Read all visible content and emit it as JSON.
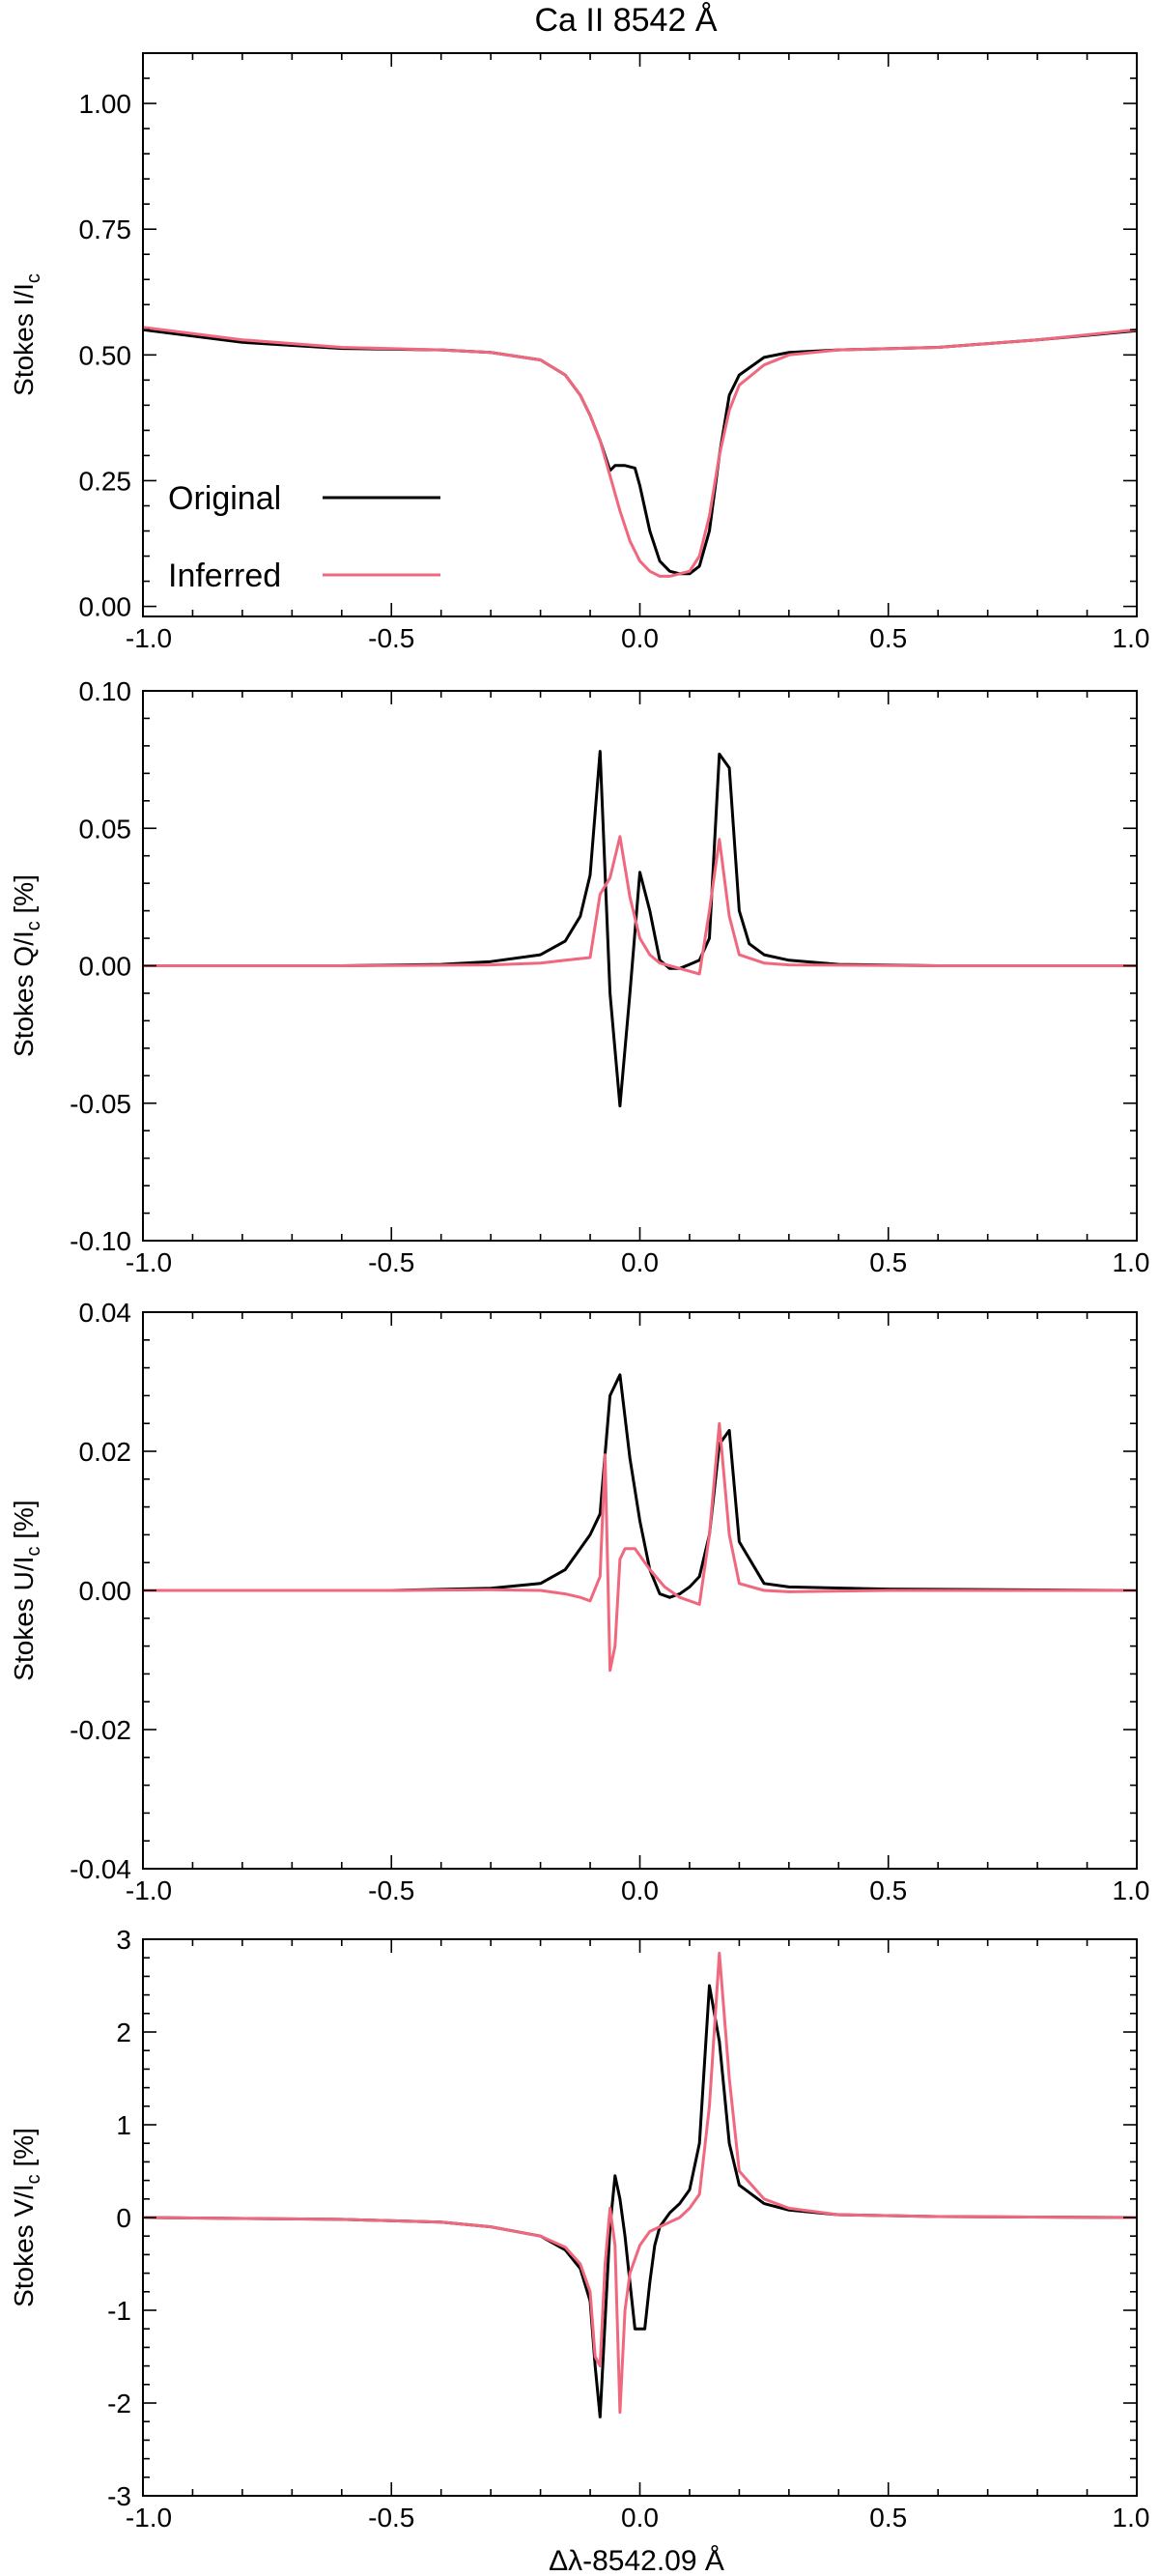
{
  "figure_title": "Ca II 8542 Å",
  "x_axis_label": "Δλ-8542.09 Å",
  "colors": {
    "original": "#000000",
    "inferred": "#f0687e",
    "axes": "#000000",
    "background": "#ffffff"
  },
  "chart_data": [
    {
      "type": "line",
      "title": "Ca II 8542 Å",
      "ylabel": "Stokes I/I",
      "ylabel_subscript": "c",
      "ylabel_suffix": "",
      "xlabel": "",
      "xlim": [
        -1.0,
        1.0
      ],
      "ylim": [
        -0.02,
        1.1
      ],
      "x_ticks": [
        -1.0,
        -0.5,
        0.0,
        0.5,
        1.0
      ],
      "x_tick_labels": [
        "-1.0",
        "-0.5",
        "0.0",
        "0.5",
        "1.0"
      ],
      "y_ticks": [
        0.0,
        0.25,
        0.5,
        0.75,
        1.0
      ],
      "y_tick_labels": [
        "0.00",
        "0.25",
        "0.50",
        "0.75",
        "1.00"
      ],
      "grid": false,
      "legend": {
        "placement": "bottom-left",
        "entries": [
          "Original",
          "Inferred"
        ]
      },
      "series": [
        {
          "name": "Original",
          "color": "#000000",
          "x": [
            -1.0,
            -0.8,
            -0.6,
            -0.4,
            -0.3,
            -0.2,
            -0.15,
            -0.12,
            -0.1,
            -0.08,
            -0.06,
            -0.05,
            -0.04,
            -0.03,
            -0.01,
            0.0,
            0.02,
            0.04,
            0.06,
            0.08,
            0.1,
            0.12,
            0.14,
            0.16,
            0.18,
            0.2,
            0.25,
            0.3,
            0.4,
            0.6,
            0.8,
            1.0
          ],
          "y": [
            0.55,
            0.525,
            0.513,
            0.51,
            0.505,
            0.49,
            0.46,
            0.42,
            0.38,
            0.33,
            0.27,
            0.28,
            0.28,
            0.28,
            0.275,
            0.24,
            0.15,
            0.09,
            0.07,
            0.065,
            0.065,
            0.08,
            0.15,
            0.3,
            0.42,
            0.46,
            0.495,
            0.505,
            0.51,
            0.515,
            0.53,
            0.548
          ]
        },
        {
          "name": "Inferred",
          "color": "#f0687e",
          "x": [
            -1.0,
            -0.8,
            -0.6,
            -0.4,
            -0.3,
            -0.2,
            -0.15,
            -0.12,
            -0.1,
            -0.08,
            -0.06,
            -0.04,
            -0.02,
            0.0,
            0.02,
            0.04,
            0.06,
            0.08,
            0.1,
            0.12,
            0.14,
            0.16,
            0.18,
            0.2,
            0.25,
            0.3,
            0.4,
            0.6,
            0.8,
            1.0
          ],
          "y": [
            0.555,
            0.53,
            0.515,
            0.51,
            0.505,
            0.49,
            0.46,
            0.42,
            0.38,
            0.33,
            0.26,
            0.19,
            0.13,
            0.09,
            0.07,
            0.06,
            0.06,
            0.065,
            0.07,
            0.1,
            0.18,
            0.3,
            0.39,
            0.44,
            0.48,
            0.5,
            0.51,
            0.515,
            0.53,
            0.55
          ]
        }
      ]
    },
    {
      "type": "line",
      "ylabel": "Stokes Q/I",
      "ylabel_subscript": "c",
      "ylabel_suffix": " [%]",
      "xlabel": "",
      "xlim": [
        -1.0,
        1.0
      ],
      "ylim": [
        -0.1,
        0.1
      ],
      "x_ticks": [
        -1.0,
        -0.5,
        0.0,
        0.5,
        1.0
      ],
      "x_tick_labels": [
        "-1.0",
        "-0.5",
        "0.0",
        "0.5",
        "1.0"
      ],
      "y_ticks": [
        -0.1,
        -0.05,
        0.0,
        0.05,
        0.1
      ],
      "y_tick_labels": [
        "-0.10",
        "-0.05",
        "0.00",
        "0.05",
        "0.10"
      ],
      "grid": false,
      "series": [
        {
          "name": "Original",
          "color": "#000000",
          "x": [
            -1.0,
            -0.6,
            -0.4,
            -0.3,
            -0.2,
            -0.15,
            -0.12,
            -0.1,
            -0.08,
            -0.06,
            -0.04,
            -0.02,
            0.0,
            0.02,
            0.04,
            0.06,
            0.08,
            0.1,
            0.12,
            0.14,
            0.16,
            0.18,
            0.2,
            0.22,
            0.25,
            0.3,
            0.4,
            0.6,
            1.0
          ],
          "y": [
            0.0,
            0.0,
            0.0005,
            0.0015,
            0.004,
            0.009,
            0.018,
            0.033,
            0.078,
            -0.01,
            -0.051,
            -0.01,
            0.034,
            0.02,
            0.002,
            -0.001,
            -0.001,
            0.0005,
            0.002,
            0.01,
            0.077,
            0.072,
            0.02,
            0.008,
            0.004,
            0.002,
            0.0005,
            0.0,
            0.0
          ]
        },
        {
          "name": "Inferred",
          "color": "#f0687e",
          "x": [
            -1.0,
            -0.6,
            -0.3,
            -0.2,
            -0.15,
            -0.1,
            -0.08,
            -0.06,
            -0.04,
            -0.02,
            0.0,
            0.02,
            0.04,
            0.06,
            0.08,
            0.1,
            0.12,
            0.14,
            0.16,
            0.18,
            0.2,
            0.25,
            0.3,
            0.6,
            1.0
          ],
          "y": [
            0.0,
            0.0,
            0.0003,
            0.001,
            0.002,
            0.003,
            0.026,
            0.032,
            0.047,
            0.025,
            0.01,
            0.004,
            0.001,
            0.0,
            -0.001,
            -0.002,
            -0.003,
            0.02,
            0.046,
            0.018,
            0.004,
            0.001,
            0.0003,
            0.0,
            0.0
          ]
        }
      ]
    },
    {
      "type": "line",
      "ylabel": "Stokes U/I",
      "ylabel_subscript": "c",
      "ylabel_suffix": " [%]",
      "xlabel": "",
      "xlim": [
        -1.0,
        1.0
      ],
      "ylim": [
        -0.04,
        0.04
      ],
      "x_ticks": [
        -1.0,
        -0.5,
        0.0,
        0.5,
        1.0
      ],
      "x_tick_labels": [
        "-1.0",
        "-0.5",
        "0.0",
        "0.5",
        "1.0"
      ],
      "y_ticks": [
        -0.04,
        -0.02,
        0.0,
        0.02,
        0.04
      ],
      "y_tick_labels": [
        "-0.04",
        "-0.02",
        "0.00",
        "0.02",
        "0.04"
      ],
      "grid": false,
      "series": [
        {
          "name": "Original",
          "color": "#000000",
          "x": [
            -1.0,
            -0.5,
            -0.3,
            -0.2,
            -0.15,
            -0.12,
            -0.1,
            -0.08,
            -0.06,
            -0.04,
            -0.02,
            0.0,
            0.02,
            0.04,
            0.06,
            0.08,
            0.1,
            0.12,
            0.14,
            0.16,
            0.18,
            0.2,
            0.25,
            0.3,
            0.5,
            1.0
          ],
          "y": [
            0.0,
            0.0,
            0.0003,
            0.001,
            0.003,
            0.006,
            0.008,
            0.011,
            0.028,
            0.031,
            0.019,
            0.01,
            0.003,
            -0.0005,
            -0.001,
            -0.0005,
            0.0005,
            0.002,
            0.008,
            0.021,
            0.023,
            0.007,
            0.001,
            0.0005,
            0.0002,
            0.0
          ]
        },
        {
          "name": "Inferred",
          "color": "#f0687e",
          "x": [
            -1.0,
            -0.5,
            -0.3,
            -0.2,
            -0.15,
            -0.12,
            -0.1,
            -0.08,
            -0.07,
            -0.06,
            -0.05,
            -0.04,
            -0.03,
            -0.01,
            0.02,
            0.05,
            0.08,
            0.1,
            0.12,
            0.14,
            0.16,
            0.18,
            0.2,
            0.25,
            0.3,
            0.5,
            1.0
          ],
          "y": [
            0.0,
            0.0,
            0.0001,
            0.0,
            -0.0005,
            -0.001,
            -0.0015,
            0.002,
            0.0195,
            -0.0115,
            -0.008,
            0.0045,
            0.006,
            0.006,
            0.003,
            0.0005,
            -0.001,
            -0.0015,
            -0.002,
            0.008,
            0.024,
            0.008,
            0.001,
            0.0,
            -0.0002,
            0.0,
            0.0
          ]
        }
      ]
    },
    {
      "type": "line",
      "ylabel": "Stokes V/I",
      "ylabel_subscript": "c",
      "ylabel_suffix": " [%]",
      "xlabel": "Δλ-8542.09 Å",
      "xlim": [
        -1.0,
        1.0
      ],
      "ylim": [
        -3.0,
        3.0
      ],
      "x_ticks": [
        -1.0,
        -0.5,
        0.0,
        0.5,
        1.0
      ],
      "x_tick_labels": [
        "-1.0",
        "-0.5",
        "0.0",
        "0.5",
        "1.0"
      ],
      "y_ticks": [
        -3,
        -2,
        -1,
        0,
        1,
        2,
        3
      ],
      "y_tick_labels": [
        "-3",
        "-2",
        "-1",
        "0",
        "1",
        "2",
        "3"
      ],
      "grid": false,
      "series": [
        {
          "name": "Original",
          "color": "#000000",
          "x": [
            -1.0,
            -0.6,
            -0.4,
            -0.3,
            -0.2,
            -0.15,
            -0.12,
            -0.1,
            -0.09,
            -0.08,
            -0.06,
            -0.05,
            -0.04,
            -0.03,
            -0.02,
            -0.01,
            0.0,
            0.01,
            0.02,
            0.03,
            0.04,
            0.06,
            0.08,
            0.1,
            0.12,
            0.14,
            0.16,
            0.18,
            0.2,
            0.25,
            0.3,
            0.4,
            0.6,
            1.0
          ],
          "y": [
            0.0,
            -0.02,
            -0.05,
            -0.1,
            -0.2,
            -0.35,
            -0.55,
            -0.9,
            -1.6,
            -2.15,
            -0.1,
            0.45,
            0.2,
            -0.2,
            -0.7,
            -1.2,
            -1.2,
            -1.2,
            -0.7,
            -0.3,
            -0.1,
            0.05,
            0.15,
            0.3,
            0.8,
            2.5,
            1.9,
            0.8,
            0.35,
            0.15,
            0.08,
            0.03,
            0.01,
            0.0
          ]
        },
        {
          "name": "Inferred",
          "color": "#f0687e",
          "x": [
            -1.0,
            -0.6,
            -0.4,
            -0.3,
            -0.2,
            -0.15,
            -0.12,
            -0.1,
            -0.09,
            -0.08,
            -0.07,
            -0.06,
            -0.05,
            -0.04,
            -0.03,
            -0.02,
            0.0,
            0.02,
            0.04,
            0.06,
            0.08,
            0.1,
            0.12,
            0.14,
            0.16,
            0.18,
            0.2,
            0.25,
            0.3,
            0.4,
            0.6,
            1.0
          ],
          "y": [
            0.0,
            -0.02,
            -0.05,
            -0.1,
            -0.2,
            -0.32,
            -0.5,
            -0.8,
            -1.5,
            -1.6,
            -0.5,
            0.1,
            -0.3,
            -2.1,
            -1.0,
            -0.6,
            -0.3,
            -0.15,
            -0.1,
            -0.05,
            0.0,
            0.1,
            0.25,
            1.2,
            2.85,
            1.5,
            0.5,
            0.2,
            0.1,
            0.03,
            0.01,
            0.0
          ]
        }
      ]
    }
  ]
}
